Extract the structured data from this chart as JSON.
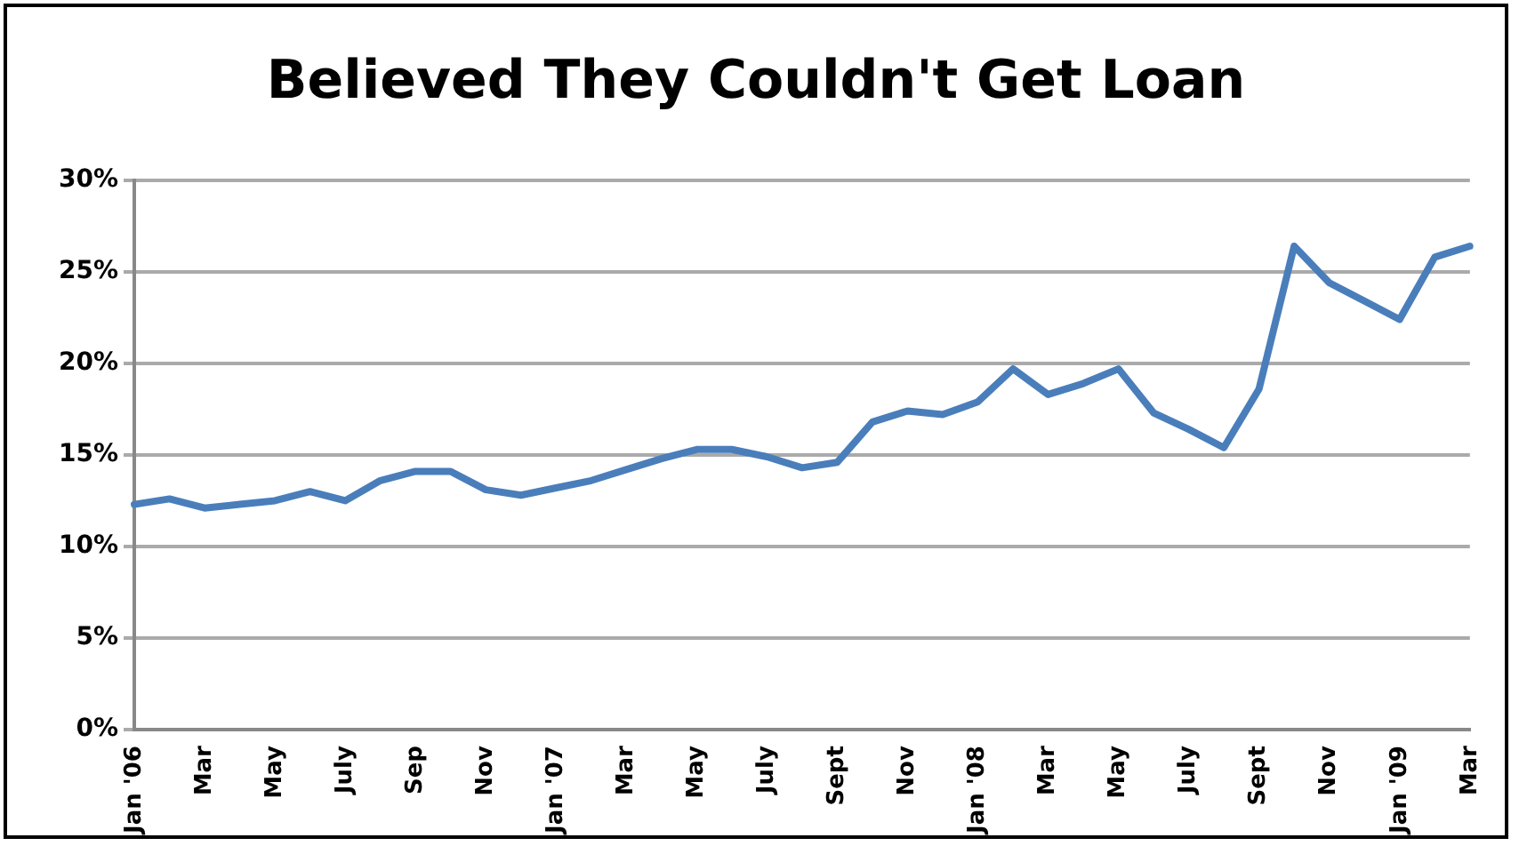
{
  "chart_data": {
    "type": "line",
    "title": "Believed They Couldn't Get Loan",
    "categories": [
      "Jan '06",
      null,
      "Mar",
      null,
      "May",
      null,
      "July",
      null,
      "Sep",
      null,
      "Nov",
      null,
      "Jan '07",
      null,
      "Mar",
      null,
      "May",
      null,
      "July",
      null,
      "Sept",
      null,
      "Nov",
      null,
      "Jan '08",
      null,
      "Mar",
      null,
      "May",
      null,
      "July",
      null,
      "Sept",
      null,
      "Nov",
      null,
      "Jan '09",
      null,
      "Mar"
    ],
    "series": [
      {
        "color": "#4a7ebb",
        "values": [
          12.3,
          12.6,
          12.1,
          12.3,
          12.5,
          13.0,
          12.5,
          13.6,
          14.1,
          14.1,
          13.1,
          12.8,
          13.2,
          13.6,
          14.2,
          14.8,
          15.3,
          15.3,
          14.9,
          14.3,
          14.6,
          16.8,
          17.4,
          17.2,
          17.9,
          19.7,
          18.3,
          18.9,
          19.7,
          17.3,
          16.4,
          15.4,
          18.6,
          26.4,
          24.4,
          23.4,
          22.4,
          25.8,
          26.4
        ]
      }
    ],
    "ylim": [
      0,
      30
    ],
    "yticks": [
      {
        "value": 0,
        "label": "0%"
      },
      {
        "value": 5,
        "label": "5%"
      },
      {
        "value": 10,
        "label": "10%"
      },
      {
        "value": 15,
        "label": "15%"
      },
      {
        "value": 20,
        "label": "20%"
      },
      {
        "value": 25,
        "label": "25%"
      },
      {
        "value": 30,
        "label": "30%"
      }
    ],
    "grid": "y",
    "legend": false,
    "marker": "none",
    "line_style": "solid"
  }
}
